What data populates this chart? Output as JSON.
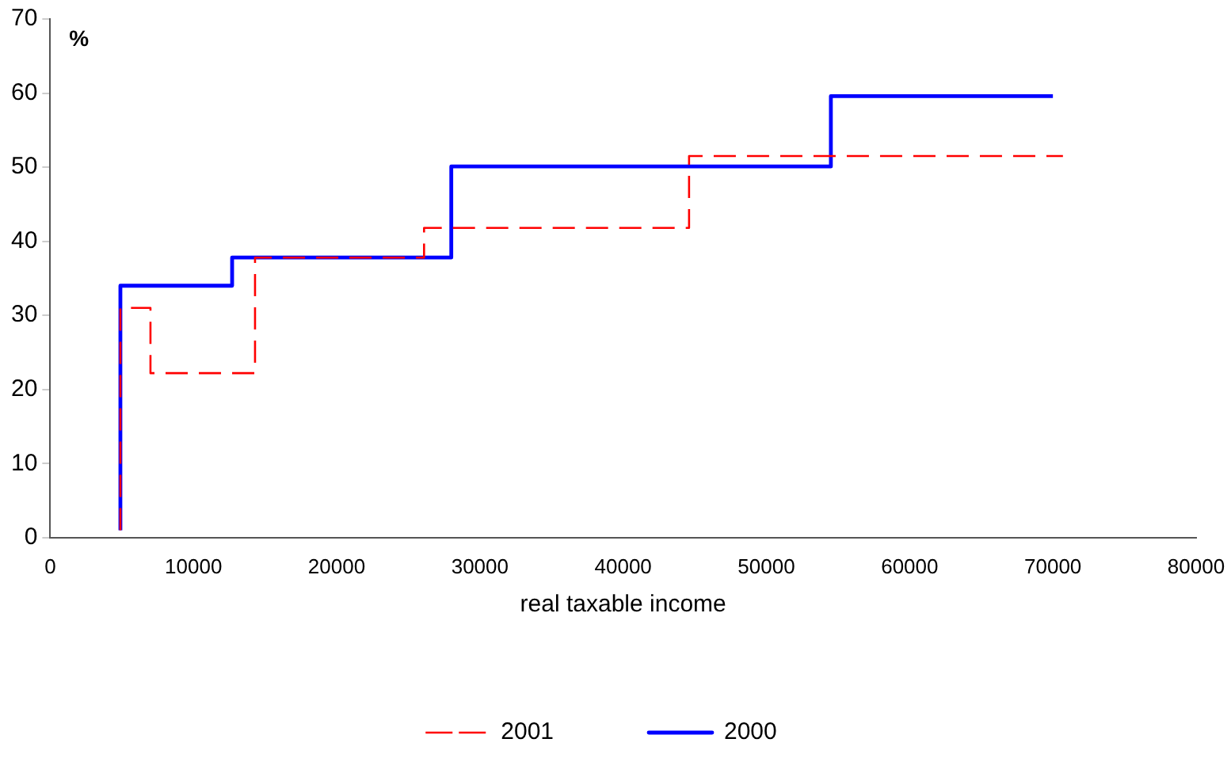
{
  "chart_data": {
    "type": "step",
    "xlabel": "real taxable income",
    "ylabel": "%",
    "xlim": [
      0,
      80000
    ],
    "xticks": [
      0,
      10000,
      20000,
      30000,
      40000,
      50000,
      60000,
      70000,
      80000
    ],
    "ylim": [
      0,
      70
    ],
    "yticks": [
      0,
      10,
      20,
      30,
      40,
      50,
      60,
      70
    ],
    "grid": false,
    "legend": "bottom",
    "marker": "none",
    "series": [
      {
        "name": "2001",
        "color": "#ff0000",
        "line_style": "dashed",
        "x": [
          4900,
          4900,
          7000,
          14300,
          26100,
          44600,
          70700
        ],
        "values": [
          1,
          31,
          22.2,
          37.8,
          41.8,
          51.5,
          51.5
        ]
      },
      {
        "name": "2000",
        "color": "#0000ff",
        "line_style": "solid",
        "x": [
          4900,
          4900,
          12700,
          28000,
          54500,
          70000
        ],
        "values": [
          1,
          34,
          37.8,
          50.1,
          59.6,
          59.6
        ]
      }
    ]
  }
}
